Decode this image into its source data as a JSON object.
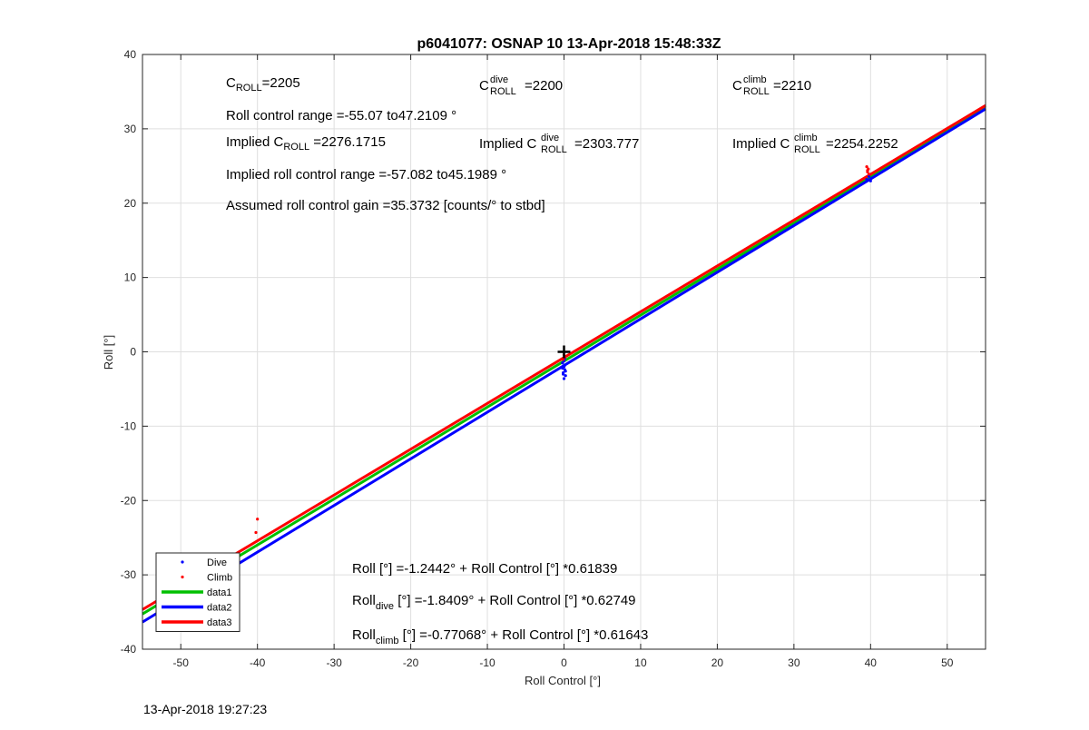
{
  "chart_data": {
    "type": "scatter",
    "title": "p6041077: OSNAP 10 13-Apr-2018 15:48:33Z",
    "xlabel": "Roll Control [°]",
    "ylabel": "Roll [°]",
    "xlim": [
      -55,
      55
    ],
    "ylim": [
      -40,
      40
    ],
    "xticks": [
      -50,
      -40,
      -30,
      -20,
      -10,
      0,
      10,
      20,
      30,
      40,
      50
    ],
    "yticks": [
      -40,
      -30,
      -20,
      -10,
      0,
      10,
      20,
      30,
      40
    ],
    "grid": true,
    "legend_position": "bottom-left",
    "series": [
      {
        "name": "Dive",
        "kind": "scatter",
        "color": "#0000ff",
        "points": [
          [
            -0.2,
            -1.5
          ],
          [
            0,
            -2.0
          ],
          [
            0.1,
            -2.4
          ],
          [
            -0.1,
            -2.8
          ],
          [
            0.2,
            -3.2
          ],
          [
            0,
            -3.6
          ],
          [
            0.1,
            -1.8
          ],
          [
            -0.2,
            -2.2
          ],
          [
            0.2,
            -2.6
          ],
          [
            0,
            -1.2
          ],
          [
            0.1,
            -0.9
          ],
          [
            -0.1,
            -3.0
          ],
          [
            39.5,
            23.2
          ],
          [
            39.8,
            23.6
          ],
          [
            40,
            23.0
          ]
        ]
      },
      {
        "name": "Climb",
        "kind": "scatter",
        "color": "#ff0000",
        "points": [
          [
            -40,
            -22.5
          ],
          [
            -40.2,
            -24.3
          ],
          [
            39.6,
            24.2
          ],
          [
            39.7,
            24.6
          ],
          [
            39.5,
            24.9
          ],
          [
            39.8,
            23.9
          ],
          [
            39.6,
            24.4
          ],
          [
            0,
            -0.4
          ],
          [
            0.1,
            -0.7
          ],
          [
            -0.1,
            -1.0
          ]
        ]
      },
      {
        "name": "data1",
        "kind": "line",
        "color": "#00c000",
        "intercept": -1.2442,
        "slope": 0.61839
      },
      {
        "name": "data2",
        "kind": "line",
        "color": "#0000ff",
        "intercept": -1.8409,
        "slope": 0.62749
      },
      {
        "name": "data3",
        "kind": "line",
        "color": "#ff0000",
        "intercept": -0.77068,
        "slope": 0.61643
      }
    ],
    "marker": {
      "x": 0,
      "y": 0,
      "symbol": "+"
    }
  },
  "annotations": {
    "c_roll": {
      "base": "C",
      "sub": "ROLL",
      "sup": "",
      "value": "=2205"
    },
    "c_roll_dive": {
      "base": "C",
      "sub": "ROLL",
      "sup": "dive",
      "value": " =2200"
    },
    "c_roll_climb": {
      "base": "C",
      "sub": "ROLL",
      "sup": "climb",
      "value": " =2210"
    },
    "roll_range": "Roll control range =-55.07 to47.2109 °",
    "implied_c_roll": {
      "prefix": "Implied C",
      "sub": "ROLL",
      "sup": "",
      "value": " =2276.1715"
    },
    "implied_c_roll_dive": {
      "prefix": "Implied C",
      "sub": "ROLL",
      "sup": "dive",
      "value": " =2303.777"
    },
    "implied_c_roll_climb": {
      "prefix": "Implied C",
      "sub": "ROLL",
      "sup": "climb",
      "value": " =2254.2252"
    },
    "implied_range": "Implied roll control range =-57.082 to45.1989 °",
    "gain": "Assumed roll control gain =35.3732 [counts/° to stbd]",
    "fit_all": {
      "base": "Roll",
      "sub": "",
      "rest": " [°] =-1.2442° + Roll Control [°] *0.61839"
    },
    "fit_dive": {
      "base": "Roll",
      "sub": "dive",
      "rest": " [°] =-1.8409° + Roll Control [°] *0.62749"
    },
    "fit_climb": {
      "base": "Roll",
      "sub": "climb",
      "rest": " [°] =-0.77068° + Roll Control [°] *0.61643"
    }
  },
  "footer": {
    "timestamp": "13-Apr-2018 19:27:23"
  }
}
